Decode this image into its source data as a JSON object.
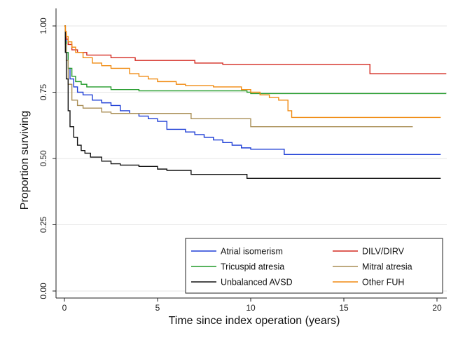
{
  "chart_data": {
    "type": "line",
    "step": true,
    "xlabel": "Time since index operation (years)",
    "ylabel": "Proportion surviving",
    "xlim": [
      0,
      20.5
    ],
    "ylim": [
      0,
      1.0
    ],
    "xticks": [
      0,
      5,
      10,
      15,
      20
    ],
    "yticks": [
      0.0,
      0.25,
      0.5,
      0.75,
      1.0
    ],
    "xtick_labels": [
      "0",
      "5",
      "10",
      "15",
      "20"
    ],
    "ytick_labels": [
      "0.00",
      "0.25",
      "0.50",
      "0.75",
      "1.00"
    ],
    "grid": "horizontal",
    "legend_position": "bottom-right",
    "series": [
      {
        "name": "Atrial isomerism",
        "color": "#1f3fd6",
        "points": [
          [
            0,
            1.0
          ],
          [
            0.05,
            0.95
          ],
          [
            0.1,
            0.9
          ],
          [
            0.2,
            0.84
          ],
          [
            0.3,
            0.8
          ],
          [
            0.5,
            0.77
          ],
          [
            0.7,
            0.75
          ],
          [
            1.0,
            0.74
          ],
          [
            1.5,
            0.72
          ],
          [
            2.0,
            0.71
          ],
          [
            2.5,
            0.7
          ],
          [
            3.0,
            0.68
          ],
          [
            3.5,
            0.67
          ],
          [
            4.0,
            0.66
          ],
          [
            4.5,
            0.65
          ],
          [
            5.0,
            0.64
          ],
          [
            5.5,
            0.61
          ],
          [
            6.5,
            0.6
          ],
          [
            7.0,
            0.59
          ],
          [
            7.5,
            0.58
          ],
          [
            8.0,
            0.57
          ],
          [
            8.5,
            0.56
          ],
          [
            9.0,
            0.55
          ],
          [
            9.5,
            0.54
          ],
          [
            10.0,
            0.535
          ],
          [
            11.0,
            0.535
          ],
          [
            11.8,
            0.515
          ],
          [
            20.2,
            0.515
          ]
        ]
      },
      {
        "name": "DILV/DIRV",
        "color": "#d42a20",
        "points": [
          [
            0,
            1.0
          ],
          [
            0.05,
            0.97
          ],
          [
            0.1,
            0.95
          ],
          [
            0.2,
            0.93
          ],
          [
            0.4,
            0.91
          ],
          [
            0.7,
            0.9
          ],
          [
            1.2,
            0.89
          ],
          [
            2.5,
            0.88
          ],
          [
            3.8,
            0.87
          ],
          [
            7.0,
            0.86
          ],
          [
            8.5,
            0.855
          ],
          [
            16.4,
            0.82
          ],
          [
            20.5,
            0.82
          ]
        ]
      },
      {
        "name": "Tricuspid atresia",
        "color": "#219a29",
        "points": [
          [
            0,
            1.0
          ],
          [
            0.05,
            0.94
          ],
          [
            0.1,
            0.9
          ],
          [
            0.2,
            0.84
          ],
          [
            0.4,
            0.81
          ],
          [
            0.6,
            0.79
          ],
          [
            0.9,
            0.78
          ],
          [
            1.2,
            0.77
          ],
          [
            2.5,
            0.76
          ],
          [
            4.0,
            0.755
          ],
          [
            9.8,
            0.75
          ],
          [
            10.0,
            0.745
          ],
          [
            20.5,
            0.745
          ]
        ]
      },
      {
        "name": "Mitral atresia",
        "color": "#a98e55",
        "points": [
          [
            0,
            1.0
          ],
          [
            0.05,
            0.93
          ],
          [
            0.1,
            0.87
          ],
          [
            0.2,
            0.78
          ],
          [
            0.4,
            0.72
          ],
          [
            0.7,
            0.7
          ],
          [
            1.0,
            0.69
          ],
          [
            2.0,
            0.675
          ],
          [
            2.5,
            0.67
          ],
          [
            6.8,
            0.65
          ],
          [
            10.0,
            0.62
          ],
          [
            18.7,
            0.62
          ]
        ]
      },
      {
        "name": "Unbalanced AVSD",
        "color": "#111111",
        "points": [
          [
            0,
            1.0
          ],
          [
            0.05,
            0.9
          ],
          [
            0.1,
            0.8
          ],
          [
            0.2,
            0.68
          ],
          [
            0.3,
            0.62
          ],
          [
            0.5,
            0.58
          ],
          [
            0.7,
            0.55
          ],
          [
            0.9,
            0.53
          ],
          [
            1.1,
            0.52
          ],
          [
            1.4,
            0.505
          ],
          [
            2.0,
            0.49
          ],
          [
            2.5,
            0.48
          ],
          [
            3.0,
            0.475
          ],
          [
            4.0,
            0.47
          ],
          [
            5.0,
            0.46
          ],
          [
            5.5,
            0.455
          ],
          [
            6.8,
            0.44
          ],
          [
            9.8,
            0.425
          ],
          [
            20.2,
            0.425
          ]
        ]
      },
      {
        "name": "Other FUH",
        "color": "#f08a10",
        "points": [
          [
            0,
            1.0
          ],
          [
            0.05,
            0.98
          ],
          [
            0.1,
            0.96
          ],
          [
            0.2,
            0.94
          ],
          [
            0.4,
            0.92
          ],
          [
            0.6,
            0.9
          ],
          [
            1.0,
            0.88
          ],
          [
            1.5,
            0.86
          ],
          [
            2.0,
            0.85
          ],
          [
            2.5,
            0.84
          ],
          [
            3.5,
            0.82
          ],
          [
            4.0,
            0.81
          ],
          [
            4.5,
            0.8
          ],
          [
            5.0,
            0.79
          ],
          [
            6.0,
            0.78
          ],
          [
            6.5,
            0.775
          ],
          [
            8.0,
            0.77
          ],
          [
            9.5,
            0.76
          ],
          [
            10.0,
            0.75
          ],
          [
            10.5,
            0.74
          ],
          [
            11.0,
            0.73
          ],
          [
            11.5,
            0.72
          ],
          [
            12.0,
            0.68
          ],
          [
            12.2,
            0.655
          ],
          [
            20.2,
            0.655
          ]
        ]
      }
    ],
    "legend_order": [
      [
        0,
        1
      ],
      [
        2,
        3
      ],
      [
        4,
        5
      ]
    ]
  }
}
